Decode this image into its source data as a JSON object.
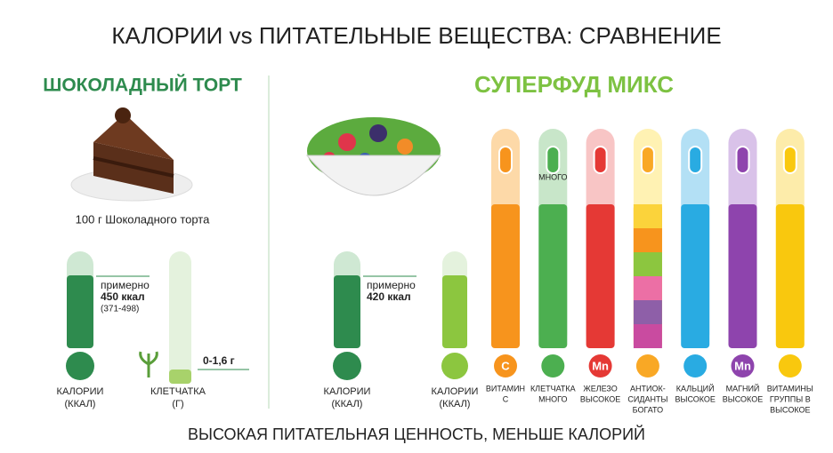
{
  "title": "КАЛОРИИ vs ПИТАТЕЛЬНЫЕ ВЕЩЕСТВА: СРАВНЕНИЕ",
  "left": {
    "heading": "ШОКОЛАДНЫЙ ТОРТ",
    "caption": "100 г Шоколадного торта",
    "calories": {
      "label": [
        "КАЛОРИИ",
        "(ККАЛ)"
      ],
      "note": [
        "примерно",
        "450 ккал",
        "(371-498)"
      ]
    },
    "fiber": {
      "label": [
        "КЛЕТЧАТКА",
        "(Г)"
      ],
      "note": "0-1,6 г"
    }
  },
  "right": {
    "heading": "СУПЕРФУД МИКС",
    "calories": {
      "label": [
        "КАЛОРИИ",
        "(ККАЛ)"
      ],
      "note": [
        "примерно",
        "420 ккал"
      ]
    },
    "calories2": {
      "label": [
        "КАЛОРИИ",
        "(ККАЛ)"
      ]
    },
    "nutrients": [
      {
        "icon": "C",
        "label": [
          "ВИТАМИН",
          "С"
        ]
      },
      {
        "bar_text": "МНОГО",
        "label": [
          "КЛЕТЧАТКА",
          "МНОГО"
        ]
      },
      {
        "icon": "Mn",
        "label": [
          "ЖЕЛЕЗО",
          "ВЫСОКОЕ"
        ]
      },
      {
        "label": [
          "АНТИОК-",
          "СИДАНТЫ",
          "БОГАТО"
        ]
      },
      {
        "label": [
          "КАЛЬЦИЙ",
          "ВЫСОКОЕ"
        ]
      },
      {
        "icon": "Mn",
        "label": [
          "МАГНИЙ",
          "ВЫСОКОЕ"
        ]
      },
      {
        "label": [
          "ВИТАМИНЫ",
          "ГРУППЫ В",
          "ВЫСОКОЕ"
        ]
      }
    ]
  },
  "footer": "ВЫСОКАЯ ПИТАТЕЛЬНАЯ ЦЕННОСТЬ, МЕНЬШЕ КАЛОРИЙ"
}
